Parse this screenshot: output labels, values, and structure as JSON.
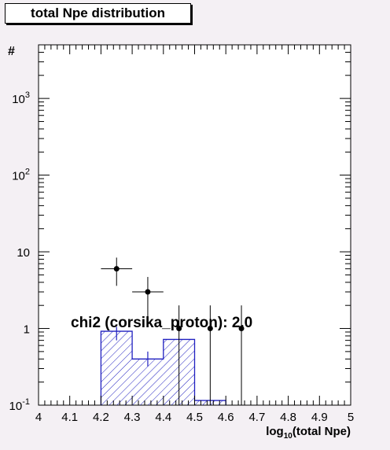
{
  "title": "total Npe distribution",
  "chart_data": {
    "type": "histogram",
    "title": "total Npe distribution",
    "xlabel": "log10(total Npe)",
    "xlabel_base": "log",
    "xlabel_sub": "10",
    "xlabel_rest": "(total Npe)",
    "ylabel": "#",
    "xlim": [
      4,
      5
    ],
    "ylim": [
      0.1,
      5000
    ],
    "yscale": "log",
    "x_ticks": [
      "4",
      "4.1",
      "4.2",
      "4.3",
      "4.4",
      "4.5",
      "4.6",
      "4.7",
      "4.8",
      "4.9",
      "5"
    ],
    "x_tick_values": [
      4,
      4.1,
      4.2,
      4.3,
      4.4,
      4.5,
      4.6,
      4.7,
      4.8,
      4.9,
      5
    ],
    "y_ticks": [
      {
        "value": 0.1,
        "base": "10",
        "exp": "-1"
      },
      {
        "value": 1,
        "base": "1",
        "exp": ""
      },
      {
        "value": 10,
        "base": "10",
        "exp": ""
      },
      {
        "value": 100,
        "base": "10",
        "exp": "2"
      },
      {
        "value": 1000,
        "base": "10",
        "exp": "3"
      }
    ],
    "simulation": {
      "name": "corsika_proton",
      "bins": [
        {
          "x0": 4.2,
          "x1": 4.3,
          "y": 0.92
        },
        {
          "x0": 4.3,
          "x1": 4.4,
          "y": 0.4
        },
        {
          "x0": 4.4,
          "x1": 4.5,
          "y": 0.72
        },
        {
          "x0": 4.5,
          "x1": 4.6,
          "y": 0.115
        }
      ],
      "error_bars": [
        {
          "x": 4.25,
          "y": 0.92,
          "ylo": 0.7,
          "yhi": 1.05
        },
        {
          "x": 4.35,
          "y": 0.4,
          "ylo": 0.32,
          "yhi": 0.5
        }
      ],
      "color": "#2020c0"
    },
    "data_points": [
      {
        "x": 4.25,
        "y": 6.0,
        "ylo": 3.6,
        "yhi": 8.4,
        "xerr": 0.05
      },
      {
        "x": 4.35,
        "y": 3.0,
        "ylo": 1.3,
        "yhi": 4.7,
        "xerr": 0.05
      },
      {
        "x": 4.45,
        "y": 1.0,
        "ylo": 0.1,
        "yhi": 2.0,
        "xerr": 0.0
      },
      {
        "x": 4.55,
        "y": 1.0,
        "ylo": 0.1,
        "yhi": 2.0,
        "xerr": 0.0
      },
      {
        "x": 4.65,
        "y": 1.0,
        "ylo": 0.1,
        "yhi": 2.0,
        "xerr": 0.0
      }
    ],
    "annotation": "chi2 (corsika_proton): 2.0"
  }
}
